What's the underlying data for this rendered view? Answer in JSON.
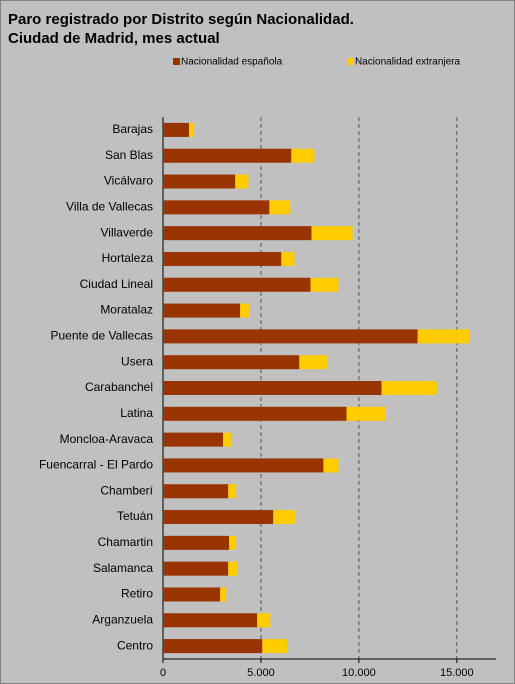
{
  "chart_data": {
    "type": "stacked_barh",
    "title": [
      "Paro registrado por Distrito según Nacionalidad.",
      "Ciudad de Madrid, mes actual"
    ],
    "categories": [
      "Barajas",
      "San Blas",
      "Vicálvaro",
      "Villa de Vallecas",
      "Villaverde",
      "Hortaleza",
      "Ciudad Lineal",
      "Moratalaz",
      "Puente de Vallecas",
      "Usera",
      "Carabanchel",
      "Latina",
      "Moncloa-Aravaca",
      "Fuencarral - El Pardo",
      "Chamberí",
      "Tetuán",
      "Chamartin",
      "Salamanca",
      "Retiro",
      "Arganzuela",
      "Centro"
    ],
    "series": [
      {
        "name": "Nacionalidad española",
        "color": "#993300",
        "values": [
          1330,
          6550,
          3690,
          5430,
          7580,
          6040,
          7530,
          3940,
          13000,
          6960,
          11160,
          9370,
          3070,
          8190,
          3330,
          5630,
          3380,
          3330,
          2920,
          4810,
          5070
        ]
      },
      {
        "name": "Nacionalidad extranjera",
        "color": "#ffcc00",
        "values": [
          260,
          1180,
          670,
          1070,
          2100,
          670,
          1430,
          460,
          2660,
          1430,
          2820,
          2000,
          410,
          770,
          410,
          1130,
          360,
          460,
          310,
          670,
          1280
        ]
      }
    ],
    "xlim": [
      0,
      17000
    ],
    "xticks": [
      0,
      {
        "value": 5000,
        "label": "5.000"
      },
      {
        "value": 10000,
        "label": "10.000"
      },
      {
        "value": 15000,
        "label": "15.000"
      }
    ],
    "grid": true
  }
}
